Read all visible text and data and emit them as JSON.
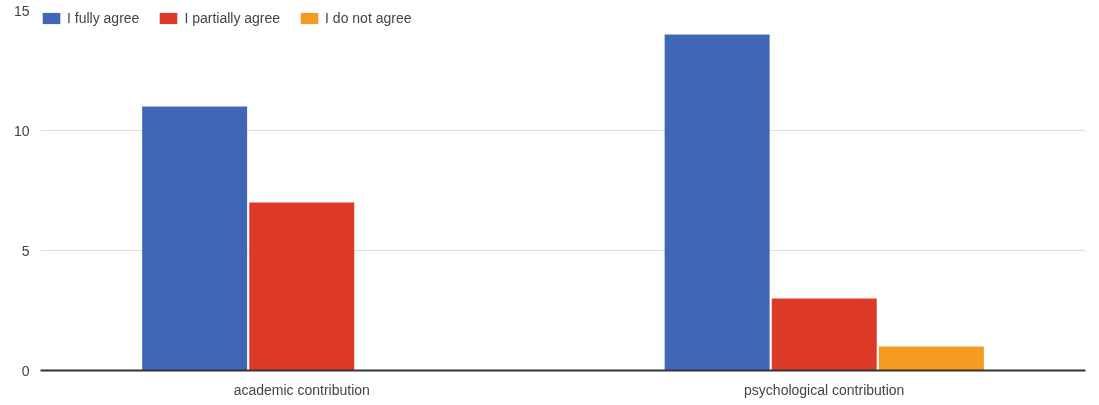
{
  "chart_data": {
    "type": "bar",
    "categories": [
      "academic contribution",
      "psychological contribution"
    ],
    "series": [
      {
        "name": "I fully agree",
        "color": "#3f67b5",
        "values": [
          11,
          14
        ]
      },
      {
        "name": "I partially agree",
        "color": "#dc3a26",
        "values": [
          7,
          3
        ]
      },
      {
        "name": "I do not agree",
        "color": "#f39c1f",
        "values": [
          0,
          1
        ]
      }
    ],
    "ylim": [
      0,
      15
    ],
    "yticks": [
      0,
      5,
      10,
      15
    ],
    "grid": "y",
    "legend": "top left"
  }
}
